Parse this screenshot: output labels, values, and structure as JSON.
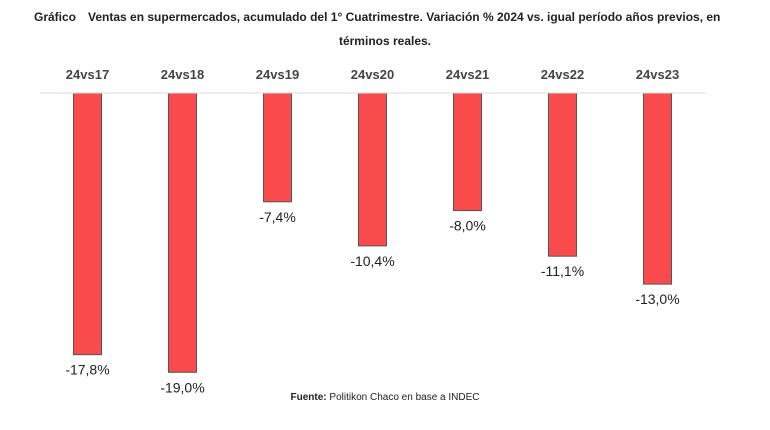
{
  "header": {
    "label": "Gráfico",
    "title_line1": "Ventas en supermercados, acumulado del 1° Cuatrimestre. Variación % 2024 vs. igual período años previos, en",
    "title_line2": "términos reales."
  },
  "chart_data": {
    "type": "bar",
    "orientation": "vertical",
    "categories": [
      "24vs17",
      "24vs18",
      "24vs19",
      "24vs20",
      "24vs21",
      "24vs22",
      "24vs23"
    ],
    "values": [
      -17.8,
      -19.0,
      -7.4,
      -10.4,
      -8.0,
      -11.1,
      -13.0
    ],
    "data_labels": [
      "-17,8%",
      "-19,0%",
      "-7,4%",
      "-10,4%",
      "-8,0%",
      "-11,1%",
      "-13,0%"
    ],
    "ylim": [
      -19.0,
      0
    ],
    "category_labels_position": "top",
    "grid": false,
    "legend": "none",
    "bar_color": "#f94a4c",
    "bar_border_color": "#555555"
  },
  "footer": {
    "source_label": "Fuente:",
    "source_text": " Politikon Chaco en base a INDEC"
  }
}
